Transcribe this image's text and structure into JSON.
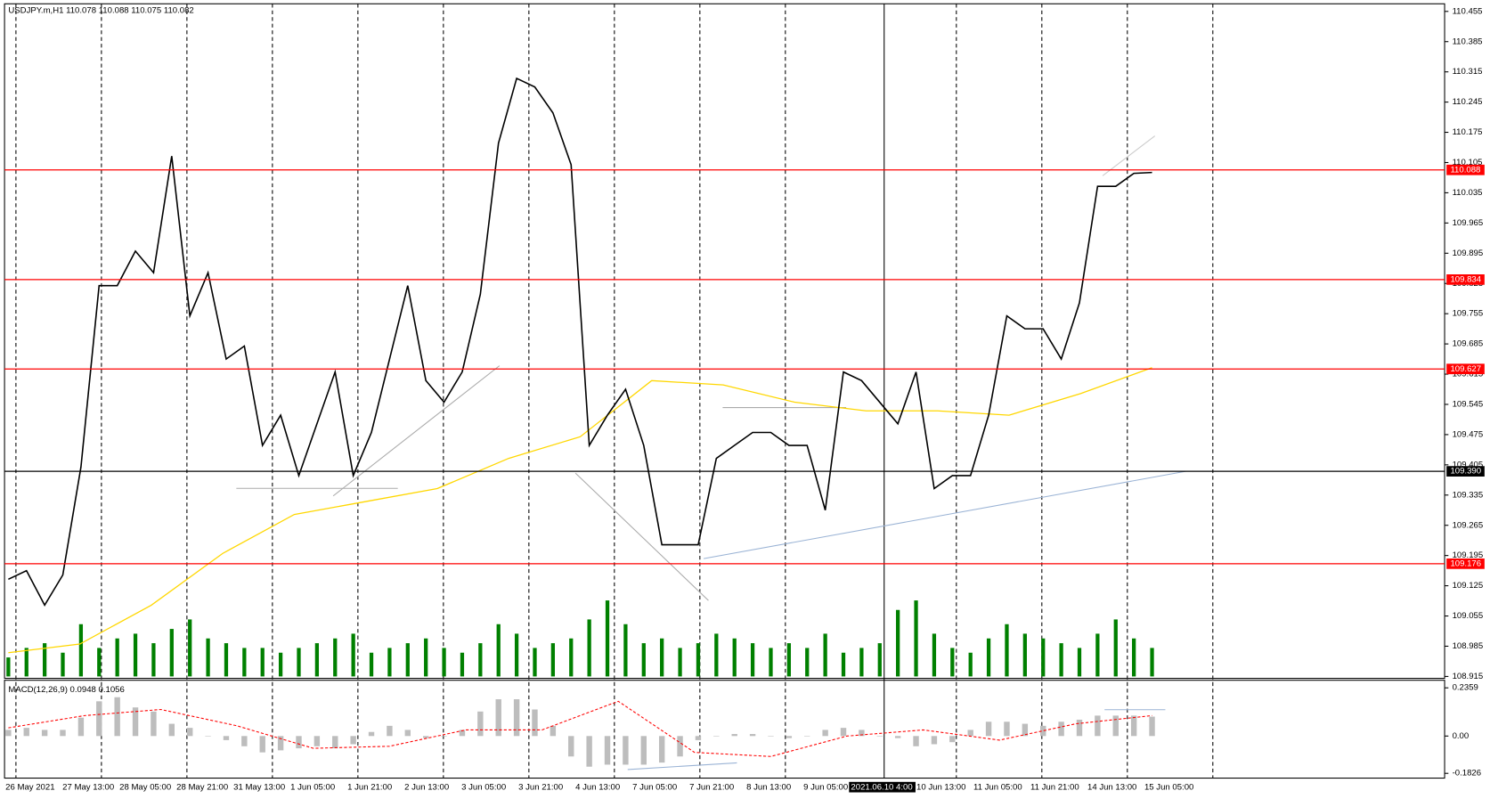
{
  "chart_data": {
    "type": "line",
    "title": "USDJPY.m,H1  110.078 110.088 110.075 110.082",
    "color": "#000000",
    "ylim": [
      108.915,
      110.455
    ],
    "yticks": [
      110.455,
      110.385,
      110.315,
      110.245,
      110.175,
      110.105,
      110.035,
      109.965,
      109.895,
      109.825,
      109.755,
      109.685,
      109.615,
      109.545,
      109.475,
      109.405,
      109.335,
      109.265,
      109.195,
      109.125,
      109.055,
      108.985,
      108.915
    ],
    "levels": [
      {
        "value": 110.088,
        "label": "110.088",
        "color": "#ff0000"
      },
      {
        "value": 109.834,
        "label": "109.834",
        "color": "#ff0000"
      },
      {
        "value": 109.627,
        "label": "109.627",
        "color": "#ff0000"
      },
      {
        "value": 109.39,
        "label": "109.390",
        "color": "#000000"
      },
      {
        "value": 109.176,
        "label": "109.176",
        "color": "#ff0000"
      }
    ],
    "x_labels": [
      "26 May 2021",
      "27 May 13:00",
      "28 May 05:00",
      "28 May 21:00",
      "31 May 13:00",
      "1 Jun 05:00",
      "1 Jun 21:00",
      "2 Jun 13:00",
      "3 Jun 05:00",
      "3 Jun 21:00",
      "4 Jun 13:00",
      "7 Jun 05:00",
      "7 Jun 21:00",
      "8 Jun 13:00",
      "9 Jun 05:00",
      "2021.06.10 4:00",
      "10 Jun 13:00",
      "11 Jun 05:00",
      "11 Jun 21:00",
      "14 Jun 13:00",
      "15 Jun 05:00"
    ],
    "values": [
      109.14,
      109.16,
      109.08,
      109.15,
      109.4,
      109.82,
      109.82,
      109.9,
      109.85,
      110.12,
      109.75,
      109.85,
      109.65,
      109.68,
      109.45,
      109.52,
      109.38,
      109.5,
      109.62,
      109.38,
      109.48,
      109.65,
      109.82,
      109.6,
      109.55,
      109.62,
      109.8,
      110.15,
      110.3,
      110.28,
      110.22,
      110.1,
      109.45,
      109.52,
      109.58,
      109.45,
      109.22,
      109.22,
      109.22,
      109.42,
      109.45,
      109.48,
      109.48,
      109.45,
      109.45,
      109.3,
      109.62,
      109.6,
      109.55,
      109.5,
      109.62,
      109.35,
      109.38,
      109.38,
      109.52,
      109.75,
      109.72,
      109.72,
      109.65,
      109.78,
      110.05,
      110.05,
      110.08,
      110.082
    ],
    "moving_average": {
      "color": "#ffd700",
      "values": [
        108.97,
        108.99,
        109.08,
        109.2,
        109.29,
        109.32,
        109.35,
        109.42,
        109.47,
        109.6,
        109.59,
        109.55,
        109.53,
        109.53,
        109.52,
        109.57,
        109.63
      ]
    },
    "volume": {
      "color": "#008000",
      "values": [
        20,
        30,
        35,
        25,
        55,
        30,
        40,
        45,
        35,
        50,
        60,
        40,
        35,
        30,
        30,
        25,
        30,
        35,
        40,
        45,
        25,
        30,
        35,
        40,
        30,
        25,
        35,
        55,
        45,
        30,
        35,
        40,
        60,
        80,
        55,
        35,
        40,
        30,
        35,
        45,
        40,
        35,
        30,
        35,
        30,
        45,
        25,
        30,
        35,
        70,
        80,
        45,
        30,
        25,
        40,
        55,
        45,
        40,
        35,
        30,
        45,
        60,
        40,
        30
      ]
    },
    "macd": {
      "label": "MACD(12,26,9) 0.0948 0.1056",
      "ylim": [
        -0.1826,
        0.2359
      ],
      "yticks": [
        0.2359,
        {
          "value": 0,
          "label": "0.00"
        },
        -0.1826
      ],
      "histogram": [
        0.03,
        0.04,
        0.03,
        0.03,
        0.09,
        0.17,
        0.19,
        0.14,
        0.12,
        0.06,
        0.04,
        0.0,
        -0.02,
        -0.05,
        -0.08,
        -0.07,
        -0.06,
        -0.05,
        -0.06,
        -0.04,
        0.02,
        0.05,
        0.03,
        -0.01,
        0.0,
        0.03,
        0.12,
        0.18,
        0.18,
        0.13,
        0.05,
        -0.1,
        -0.15,
        -0.14,
        -0.14,
        -0.14,
        -0.13,
        -0.1,
        -0.02,
        0.0,
        0.01,
        0.01,
        0.0,
        -0.01,
        0.0,
        0.03,
        0.04,
        0.03,
        0.0,
        -0.01,
        -0.05,
        -0.04,
        -0.03,
        0.03,
        0.07,
        0.07,
        0.06,
        0.05,
        0.07,
        0.08,
        0.1,
        0.1,
        0.1,
        0.095
      ],
      "signal": [
        0.04,
        0.1,
        0.13,
        0.05,
        -0.06,
        -0.05,
        0.03,
        0.03,
        0.17,
        -0.08,
        -0.1,
        0.0,
        0.03,
        -0.02,
        0.06,
        0.1
      ]
    }
  }
}
